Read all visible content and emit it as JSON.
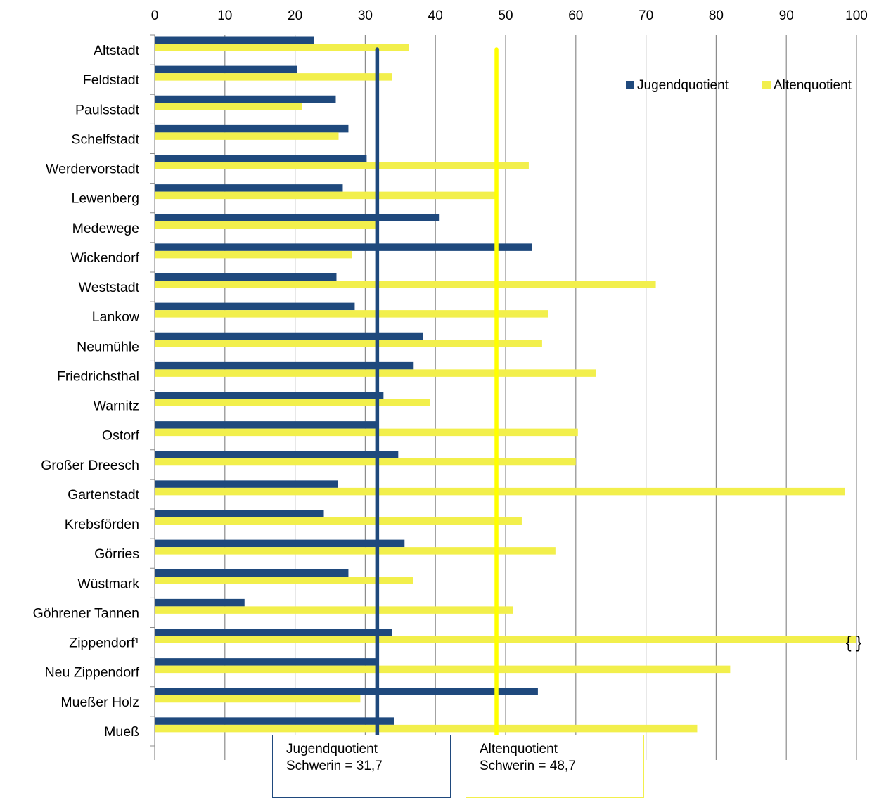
{
  "chart_data": {
    "type": "bar",
    "orientation": "horizontal",
    "title": "",
    "xlabel": "",
    "ylabel": "",
    "xlim": [
      0,
      100
    ],
    "x_ticks": [
      0,
      10,
      20,
      30,
      40,
      50,
      60,
      70,
      80,
      90,
      100
    ],
    "x_axis_position": "top",
    "grid": "vertical",
    "legend_position": "top-right",
    "categories": [
      "Altstadt",
      "Feldstadt",
      "Paulsstadt",
      "Schelfstadt",
      "Werdervorstadt",
      "Lewenberg",
      "Medewege",
      "Wickendorf",
      "Weststadt",
      "Lankow",
      "Neumühle",
      "Friedrichsthal",
      "Warnitz",
      "Ostorf",
      "Großer Dreesch",
      "Gartenstadt",
      "Krebsförden",
      "Görries",
      "Wüstmark",
      "Göhrener Tannen",
      "Zippendorf¹",
      "Neu Zippendorf",
      "Mueßer Holz",
      "Mueß"
    ],
    "series": [
      {
        "name": "Jugendquotient",
        "color": "#1F497D",
        "values": [
          22.7,
          20.3,
          25.8,
          27.6,
          30.2,
          26.8,
          40.6,
          53.8,
          25.9,
          28.5,
          38.2,
          36.9,
          32.6,
          31.9,
          34.7,
          26.1,
          24.1,
          35.6,
          27.6,
          12.8,
          33.8,
          31.5,
          54.6,
          34.1
        ]
      },
      {
        "name": "Altenquotient",
        "color": "#F2EF4C",
        "values": [
          36.2,
          33.8,
          21.0,
          26.2,
          53.3,
          48.9,
          31.7,
          28.1,
          71.4,
          56.1,
          55.2,
          62.9,
          39.2,
          60.3,
          60.0,
          98.3,
          52.3,
          57.1,
          36.8,
          51.1,
          100,
          82.0,
          29.3,
          77.3
        ]
      }
    ],
    "reference_lines": [
      {
        "series": "Jugendquotient",
        "value": 31.7,
        "color": "#1F497D"
      },
      {
        "series": "Altenquotient",
        "value": 48.7,
        "color": "#FFFF00"
      }
    ],
    "break_marker_category": "Zippendorf¹",
    "break_marker_text": "{ }"
  },
  "notes": {
    "youth_line1": "Jugendquotient",
    "youth_line2": "Schwerin = 31,7",
    "elder_line1": "Altenquotient",
    "elder_line2": "Schwerin  =  48,7"
  }
}
